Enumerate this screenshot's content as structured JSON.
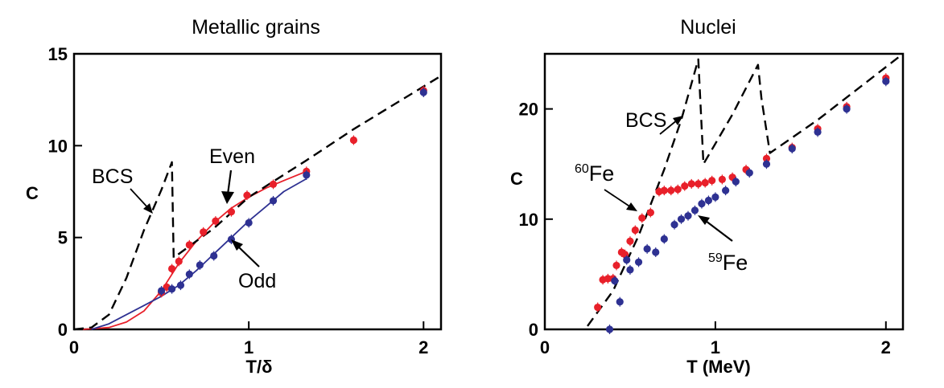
{
  "colors": {
    "red": "#e8202a",
    "blue": "#2e3192",
    "black": "#000000"
  },
  "chart_data": [
    {
      "type": "scatter",
      "title": "Metallic grains",
      "xlabel": "T/δ",
      "ylabel": "C",
      "xlim": [
        0,
        2.1
      ],
      "ylim": [
        0,
        15
      ],
      "xticks": [
        0,
        1,
        2
      ],
      "xtick_labels": [
        "0",
        "1",
        "2"
      ],
      "yticks": [
        0,
        5,
        10,
        15
      ],
      "ytick_labels": [
        "0",
        "5",
        "10",
        "15"
      ],
      "series": [
        {
          "name": "Even",
          "kind": "points",
          "color": "#e8202a",
          "x": [
            0.5,
            0.53,
            0.56,
            0.6,
            0.66,
            0.74,
            0.81,
            0.9,
            0.99,
            1.14,
            1.33,
            1.6,
            2.0
          ],
          "y": [
            2.0,
            2.3,
            3.3,
            3.7,
            4.6,
            5.3,
            5.9,
            6.4,
            7.3,
            7.9,
            8.6,
            10.3,
            13.0
          ]
        },
        {
          "name": "Odd",
          "kind": "points",
          "color": "#2e3192",
          "x": [
            0.5,
            0.56,
            0.61,
            0.66,
            0.72,
            0.8,
            0.9,
            1.0,
            1.14,
            1.33,
            2.0
          ],
          "y": [
            2.1,
            2.2,
            2.4,
            3.0,
            3.5,
            4.0,
            4.9,
            5.8,
            7.0,
            8.4,
            12.9
          ]
        },
        {
          "name": "Even fit",
          "kind": "line",
          "color": "#e8202a",
          "x": [
            0.05,
            0.2,
            0.3,
            0.4,
            0.5,
            0.6,
            0.7,
            0.8,
            0.9,
            1.0,
            1.1,
            1.2,
            1.33
          ],
          "y": [
            0.0,
            0.1,
            0.4,
            1.0,
            2.1,
            3.6,
            4.8,
            5.8,
            6.6,
            7.2,
            7.7,
            8.1,
            8.6
          ]
        },
        {
          "name": "Odd fit",
          "kind": "line",
          "color": "#2e3192",
          "x": [
            0.1,
            0.2,
            0.3,
            0.4,
            0.5,
            0.6,
            0.7,
            0.8,
            0.9,
            1.0,
            1.1,
            1.2,
            1.33
          ],
          "y": [
            0.0,
            0.3,
            0.8,
            1.3,
            1.8,
            2.4,
            3.2,
            4.1,
            5.0,
            5.9,
            6.7,
            7.5,
            8.2
          ]
        },
        {
          "name": "BCS",
          "kind": "dashed",
          "color": "#000000",
          "x": [
            0.0,
            0.1,
            0.2,
            0.3,
            0.4,
            0.5,
            0.56,
            0.57,
            0.8,
            1.0,
            1.33,
            1.6,
            2.1
          ],
          "y": [
            0.0,
            0.1,
            0.8,
            2.8,
            5.4,
            7.6,
            9.1,
            3.9,
            5.5,
            7.2,
            9.2,
            10.9,
            13.8
          ]
        }
      ],
      "annotations": [
        {
          "text": "BCS",
          "x": 0.18,
          "y": 7.7
        },
        {
          "text": "Even",
          "x": 0.78,
          "y": 9.4
        },
        {
          "text": "Odd",
          "x": 0.97,
          "y": 2.3
        }
      ]
    },
    {
      "type": "scatter",
      "title": "Nuclei",
      "xlabel": "T (MeV)",
      "ylabel": "C",
      "xlim": [
        0,
        2.1
      ],
      "ylim": [
        0,
        25
      ],
      "xticks": [
        0,
        1,
        2
      ],
      "xtick_labels": [
        "0",
        "1",
        "2"
      ],
      "yticks": [
        0,
        10,
        20
      ],
      "ytick_labels": [
        "0",
        "10",
        "20"
      ],
      "series": [
        {
          "name": "60Fe",
          "kind": "points",
          "color": "#e8202a",
          "x": [
            0.31,
            0.34,
            0.37,
            0.4,
            0.42,
            0.45,
            0.47,
            0.5,
            0.53,
            0.57,
            0.62,
            0.67,
            0.7,
            0.74,
            0.78,
            0.82,
            0.86,
            0.9,
            0.94,
            0.98,
            1.04,
            1.1,
            1.18,
            1.3,
            1.45,
            1.6,
            1.77,
            2.0
          ],
          "y": [
            2.0,
            4.5,
            4.6,
            4.6,
            5.8,
            7.0,
            6.8,
            8.0,
            9.0,
            10.1,
            10.6,
            12.5,
            12.6,
            12.6,
            12.7,
            13.0,
            13.2,
            13.2,
            13.3,
            13.5,
            13.6,
            13.8,
            14.5,
            15.5,
            16.5,
            18.2,
            20.2,
            22.8
          ]
        },
        {
          "name": "59Fe",
          "kind": "points",
          "color": "#2e3192",
          "x": [
            0.38,
            0.41,
            0.44,
            0.48,
            0.5,
            0.55,
            0.6,
            0.65,
            0.7,
            0.76,
            0.8,
            0.84,
            0.88,
            0.92,
            0.96,
            1.0,
            1.06,
            1.12,
            1.2,
            1.3,
            1.45,
            1.6,
            1.77,
            2.0
          ],
          "y": [
            0.0,
            4.4,
            2.5,
            6.3,
            5.4,
            6.1,
            7.3,
            7.0,
            8.2,
            9.5,
            10.0,
            10.3,
            10.8,
            11.4,
            11.7,
            12.0,
            12.6,
            13.4,
            14.2,
            15.0,
            16.4,
            17.9,
            20.0,
            22.5
          ]
        },
        {
          "name": "BCS",
          "kind": "dashed",
          "color": "#000000",
          "x": [
            0.25,
            0.4,
            0.55,
            0.7,
            0.8,
            0.9,
            0.93,
            1.1,
            1.25,
            1.27,
            1.32,
            1.6,
            2.1
          ],
          "y": [
            0.3,
            3.5,
            8.5,
            14.5,
            19.0,
            24.5,
            15.0,
            19.5,
            24.0,
            21.0,
            16.0,
            19.0,
            25.0
          ]
        }
      ],
      "annotations": [
        {
          "text": "BCS",
          "x": 0.48,
          "y": 20.0
        },
        {
          "text": "60Fe",
          "sup": "60",
          "base": "Fe",
          "x": 0.18,
          "y": 13.0
        },
        {
          "text": "59Fe",
          "sup": "59",
          "base": "Fe",
          "x": 0.88,
          "y": 5.0
        }
      ]
    }
  ]
}
